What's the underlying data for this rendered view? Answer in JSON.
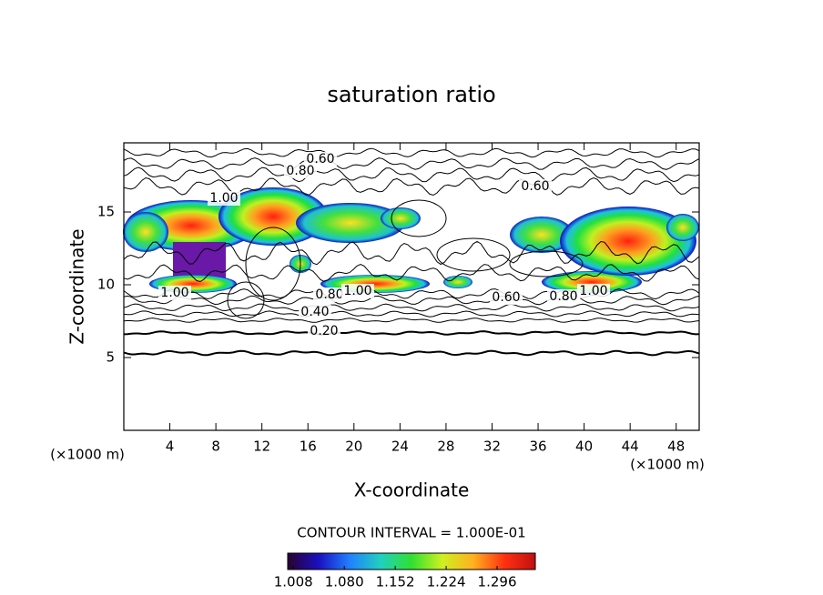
{
  "chart_data": {
    "type": "contour",
    "title": "saturation ratio",
    "x_label": "X-coordinate",
    "y_label": "Z-coordinate",
    "x_unit_label": "(×1000 m)",
    "y_unit_label": "(×1000 m)",
    "xlim": [
      0,
      50
    ],
    "ylim": [
      0,
      19.75
    ],
    "xticks": [
      4,
      8,
      12,
      16,
      20,
      24,
      28,
      32,
      36,
      40,
      44,
      48
    ],
    "yticks": [
      5,
      10,
      15
    ],
    "contour_labels": [
      {
        "value": 0.6,
        "label": "0.60"
      },
      {
        "value": 0.8,
        "label": "0.80"
      },
      {
        "value": 1.0,
        "label": "1.00"
      },
      {
        "value": 0.6,
        "label": "0.60"
      },
      {
        "value": 1.0,
        "label": "1.00"
      },
      {
        "value": 0.8,
        "label": "0.80"
      },
      {
        "value": 1.0,
        "label": "1.00"
      },
      {
        "value": 0.6,
        "label": "0.60"
      },
      {
        "value": 0.8,
        "label": "0.80"
      },
      {
        "value": 1.0,
        "label": "1.00"
      },
      {
        "value": 0.4,
        "label": "0.40"
      },
      {
        "value": 0.2,
        "label": "0.20"
      }
    ],
    "contour_interval_text": "CONTOUR INTERVAL = 1.000E-01",
    "colorbar": {
      "lim": [
        1.0,
        1.35
      ],
      "ticks": [
        1.008,
        {
          "value": 1.08,
          "label": "1.080"
        },
        1.152,
        1.224,
        1.296
      ],
      "colors": [
        "#2a0030",
        "#1a10c0",
        "#2080ff",
        "#20d0c0",
        "#30e030",
        "#d0f020",
        "#ffb020",
        "#ff3010",
        "#c01010"
      ]
    }
  }
}
